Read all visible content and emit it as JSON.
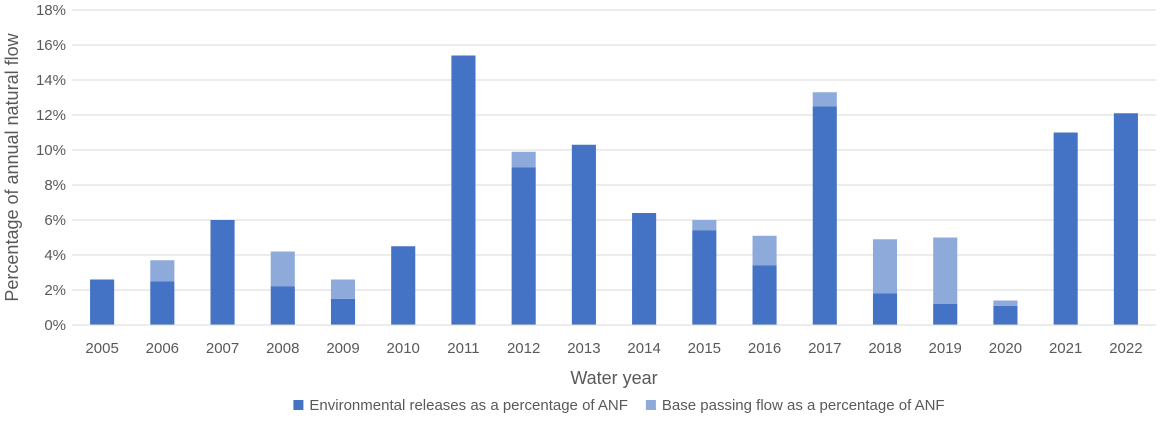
{
  "chart_data": {
    "type": "bar",
    "stacked": true,
    "categories": [
      "2005",
      "2006",
      "2007",
      "2008",
      "2009",
      "2010",
      "2011",
      "2012",
      "2013",
      "2014",
      "2015",
      "2016",
      "2017",
      "2018",
      "2019",
      "2020",
      "2021",
      "2022"
    ],
    "series": [
      {
        "name": "Environmental releases as a percentage of ANF",
        "color": "#4472c4",
        "values": [
          2.6,
          2.5,
          6.0,
          2.2,
          1.5,
          4.5,
          15.4,
          9.0,
          10.3,
          6.4,
          5.4,
          3.4,
          12.5,
          1.8,
          1.2,
          1.1,
          11.0,
          12.1
        ]
      },
      {
        "name": "Base passing flow as a percentage of ANF",
        "color": "#8eaadb",
        "values": [
          0,
          1.2,
          0,
          2.0,
          1.1,
          0,
          0,
          0.9,
          0,
          0,
          0.6,
          1.7,
          0.8,
          3.1,
          3.8,
          0.3,
          0,
          0
        ]
      }
    ],
    "xlabel": "Water year",
    "ylabel": "Percentage of annual natural flow",
    "ylim": [
      0,
      18
    ],
    "yticks": [
      "0%",
      "2%",
      "4%",
      "6%",
      "8%",
      "10%",
      "12%",
      "14%",
      "16%",
      "18%"
    ],
    "grid": true,
    "legend_position": "bottom"
  }
}
